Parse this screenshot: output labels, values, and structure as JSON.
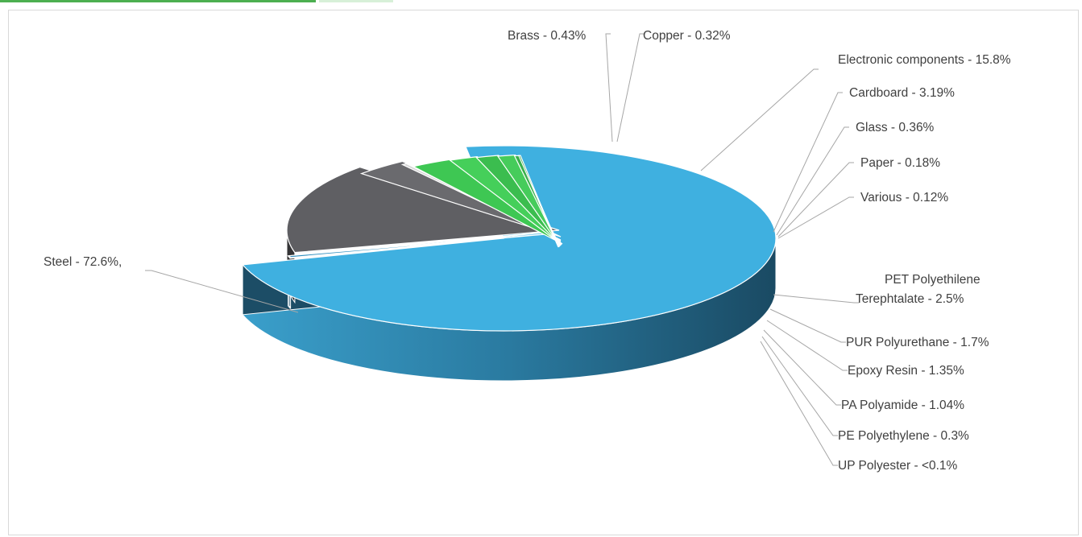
{
  "chart_data": {
    "type": "pie",
    "title": "",
    "style": "3d-exploded",
    "slices": [
      {
        "label": "Steel - 72.6%,",
        "value": 72.6,
        "color": "#3fb0e0"
      },
      {
        "label": "Brass - 0.43%",
        "value": 0.43,
        "color": "#4ab8e6"
      },
      {
        "label": "Copper - 0.32%",
        "value": 0.32,
        "color": "#2f8fbf"
      },
      {
        "label": "Electronic components - 15.8%",
        "value": 15.8,
        "color": "#5f5f63"
      },
      {
        "label": "Cardboard - 3.19%",
        "value": 3.19,
        "color": "#6a6a6e"
      },
      {
        "label": "Glass - 0.36%",
        "value": 0.36,
        "color": "#d6d6d6"
      },
      {
        "label": "Paper - 0.18%",
        "value": 0.18,
        "color": "#e4e4e4"
      },
      {
        "label": "Various - 0.12%",
        "value": 0.12,
        "color": "#f0f0f0"
      },
      {
        "label": "PET Polyethilene Terephtalate - 2.5%",
        "value": 2.5,
        "color": "#3ec753"
      },
      {
        "label": "PUR Polyurethane - 1.7%",
        "value": 1.7,
        "color": "#45cf5a"
      },
      {
        "label": "Epoxy Resin - 1.35%",
        "value": 1.35,
        "color": "#3bbd4f"
      },
      {
        "label": "PA Polyamide - 1.04%",
        "value": 1.04,
        "color": "#46cc5b"
      },
      {
        "label": "PE Polyethylene - 0.3%",
        "value": 0.3,
        "color": "#3ab04d"
      },
      {
        "label": "UP Polyester - <0.1%",
        "value": 0.1,
        "color": "#2f9a41"
      }
    ]
  }
}
